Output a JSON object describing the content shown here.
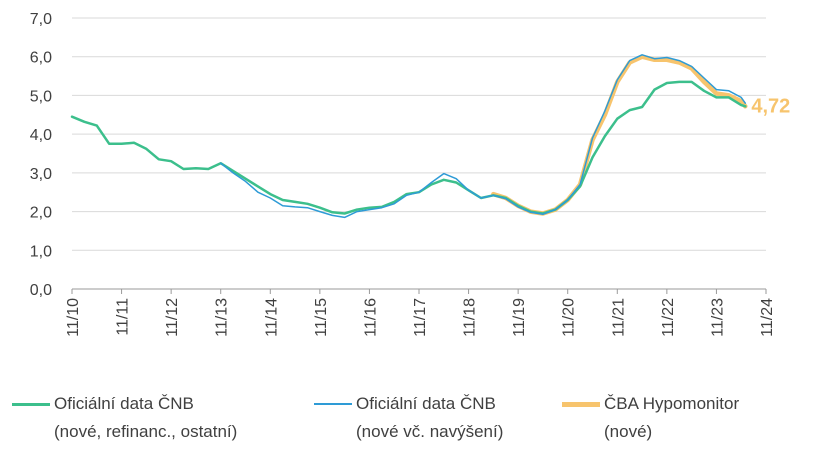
{
  "chart_data": {
    "type": "line",
    "title": "",
    "xlabel": "",
    "ylabel": "",
    "ylim": [
      0,
      7
    ],
    "yticks": [
      "0,0",
      "1,0",
      "2,0",
      "3,0",
      "4,0",
      "5,0",
      "6,0",
      "7,0"
    ],
    "x_tick_labels": [
      "11/10",
      "11/11",
      "11/12",
      "11/13",
      "11/14",
      "11/15",
      "11/16",
      "11/17",
      "11/18",
      "11/19",
      "11/20",
      "11/21",
      "11/22",
      "11/23",
      "11/24"
    ],
    "grid": "horizontal",
    "legend_position": "bottom",
    "end_label": "4,72",
    "series": [
      {
        "name": "Oficiální data ČNB (nové, refinanc., ostatní)",
        "color": "#3cbf8c",
        "width": 2.5,
        "points": [
          [
            "2010-11",
            4.45
          ],
          [
            "2011-02",
            4.32
          ],
          [
            "2011-05",
            4.22
          ],
          [
            "2011-08",
            3.75
          ],
          [
            "2011-11",
            3.75
          ],
          [
            "2012-02",
            3.78
          ],
          [
            "2012-05",
            3.62
          ],
          [
            "2012-08",
            3.35
          ],
          [
            "2012-11",
            3.3
          ],
          [
            "2013-02",
            3.1
          ],
          [
            "2013-05",
            3.12
          ],
          [
            "2013-08",
            3.1
          ],
          [
            "2013-11",
            3.25
          ],
          [
            "2014-02",
            3.05
          ],
          [
            "2014-05",
            2.85
          ],
          [
            "2014-08",
            2.65
          ],
          [
            "2014-11",
            2.45
          ],
          [
            "2015-02",
            2.3
          ],
          [
            "2015-05",
            2.25
          ],
          [
            "2015-08",
            2.2
          ],
          [
            "2015-11",
            2.1
          ],
          [
            "2016-02",
            1.98
          ],
          [
            "2016-05",
            1.95
          ],
          [
            "2016-08",
            2.05
          ],
          [
            "2016-11",
            2.1
          ],
          [
            "2017-02",
            2.12
          ],
          [
            "2017-05",
            2.25
          ],
          [
            "2017-08",
            2.45
          ],
          [
            "2017-11",
            2.5
          ],
          [
            "2018-02",
            2.7
          ],
          [
            "2018-05",
            2.82
          ],
          [
            "2018-08",
            2.75
          ],
          [
            "2018-11",
            2.55
          ],
          [
            "2019-02",
            2.35
          ],
          [
            "2019-05",
            2.42
          ],
          [
            "2019-08",
            2.35
          ],
          [
            "2019-11",
            2.15
          ],
          [
            "2020-02",
            2.0
          ],
          [
            "2020-05",
            1.95
          ],
          [
            "2020-08",
            2.05
          ],
          [
            "2020-11",
            2.3
          ],
          [
            "2021-02",
            2.65
          ],
          [
            "2021-05",
            3.4
          ],
          [
            "2021-08",
            3.95
          ],
          [
            "2021-11",
            4.4
          ],
          [
            "2022-02",
            4.62
          ],
          [
            "2022-05",
            4.7
          ],
          [
            "2022-08",
            5.15
          ],
          [
            "2022-11",
            5.32
          ],
          [
            "2023-02",
            5.35
          ],
          [
            "2023-05",
            5.35
          ],
          [
            "2023-08",
            5.12
          ],
          [
            "2023-11",
            4.95
          ],
          [
            "2024-02",
            4.95
          ],
          [
            "2024-05",
            4.75
          ],
          [
            "2024-06",
            4.72
          ]
        ]
      },
      {
        "name": "Oficiální data ČNB (nové vč. navýšení)",
        "color": "#2e9bd6",
        "width": 1.5,
        "points": [
          [
            "2013-11",
            3.25
          ],
          [
            "2014-02",
            3.0
          ],
          [
            "2014-05",
            2.78
          ],
          [
            "2014-08",
            2.5
          ],
          [
            "2014-11",
            2.35
          ],
          [
            "2015-02",
            2.15
          ],
          [
            "2015-05",
            2.12
          ],
          [
            "2015-08",
            2.1
          ],
          [
            "2015-11",
            2.0
          ],
          [
            "2016-02",
            1.9
          ],
          [
            "2016-05",
            1.85
          ],
          [
            "2016-08",
            2.0
          ],
          [
            "2016-11",
            2.05
          ],
          [
            "2017-02",
            2.1
          ],
          [
            "2017-05",
            2.2
          ],
          [
            "2017-08",
            2.42
          ],
          [
            "2017-11",
            2.5
          ],
          [
            "2018-02",
            2.75
          ],
          [
            "2018-05",
            2.98
          ],
          [
            "2018-08",
            2.85
          ],
          [
            "2018-11",
            2.55
          ],
          [
            "2019-02",
            2.35
          ],
          [
            "2019-05",
            2.42
          ],
          [
            "2019-08",
            2.33
          ],
          [
            "2019-11",
            2.12
          ],
          [
            "2020-02",
            1.98
          ],
          [
            "2020-05",
            1.93
          ],
          [
            "2020-08",
            2.05
          ],
          [
            "2020-11",
            2.3
          ],
          [
            "2021-02",
            2.7
          ],
          [
            "2021-05",
            3.9
          ],
          [
            "2021-08",
            4.6
          ],
          [
            "2021-11",
            5.4
          ],
          [
            "2022-02",
            5.9
          ],
          [
            "2022-05",
            6.05
          ],
          [
            "2022-08",
            5.95
          ],
          [
            "2022-11",
            5.98
          ],
          [
            "2023-02",
            5.9
          ],
          [
            "2023-05",
            5.75
          ],
          [
            "2023-08",
            5.45
          ],
          [
            "2023-11",
            5.15
          ],
          [
            "2024-02",
            5.12
          ],
          [
            "2024-05",
            4.95
          ],
          [
            "2024-06",
            4.8
          ]
        ]
      },
      {
        "name": "ČBA Hypomonitor (nové)",
        "color": "#f7c46d",
        "width": 4.5,
        "points": [
          [
            "2019-05",
            2.45
          ],
          [
            "2019-08",
            2.35
          ],
          [
            "2019-11",
            2.15
          ],
          [
            "2020-02",
            2.0
          ],
          [
            "2020-05",
            1.95
          ],
          [
            "2020-08",
            2.05
          ],
          [
            "2020-11",
            2.3
          ],
          [
            "2021-02",
            2.7
          ],
          [
            "2021-05",
            3.85
          ],
          [
            "2021-08",
            4.5
          ],
          [
            "2021-11",
            5.35
          ],
          [
            "2022-02",
            5.85
          ],
          [
            "2022-05",
            6.0
          ],
          [
            "2022-08",
            5.92
          ],
          [
            "2022-11",
            5.92
          ],
          [
            "2023-02",
            5.85
          ],
          [
            "2023-05",
            5.7
          ],
          [
            "2023-08",
            5.35
          ],
          [
            "2023-11",
            5.05
          ],
          [
            "2024-02",
            5.0
          ],
          [
            "2024-05",
            4.85
          ],
          [
            "2024-06",
            4.72
          ]
        ]
      }
    ]
  },
  "legend": [
    {
      "line1": "Oficiální data ČNB",
      "line2": "(nové, refinanc., ostatní)",
      "color": "#3cbf8c"
    },
    {
      "line1": "Oficiální data ČNB",
      "line2": "(nové vč. navýšení)",
      "color": "#2e9bd6"
    },
    {
      "line1": "ČBA Hypomonitor",
      "line2": "(nové)",
      "color": "#f7c46d"
    }
  ]
}
